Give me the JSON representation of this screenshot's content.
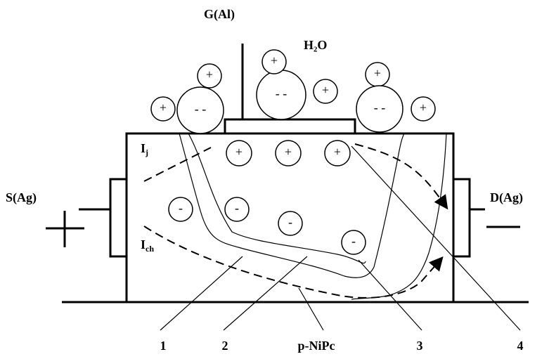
{
  "labels": {
    "gate": "G(Al)",
    "water": "H₂O",
    "source": "S(Ag)",
    "drain": "D(Ag)"
  },
  "currents": [
    {
      "main": "I",
      "sub": "j"
    },
    {
      "main": "I",
      "sub": "ch"
    }
  ],
  "outer_ions": [
    "+",
    "- -",
    "+",
    "- -",
    "+",
    "+",
    "+",
    "- -",
    "+"
  ],
  "holes": [
    "+",
    "+",
    "+"
  ],
  "electrons": [
    "-",
    "-",
    "-",
    "-"
  ],
  "callouts": [
    "1",
    "2",
    "p-NiPc",
    "3",
    "4"
  ]
}
